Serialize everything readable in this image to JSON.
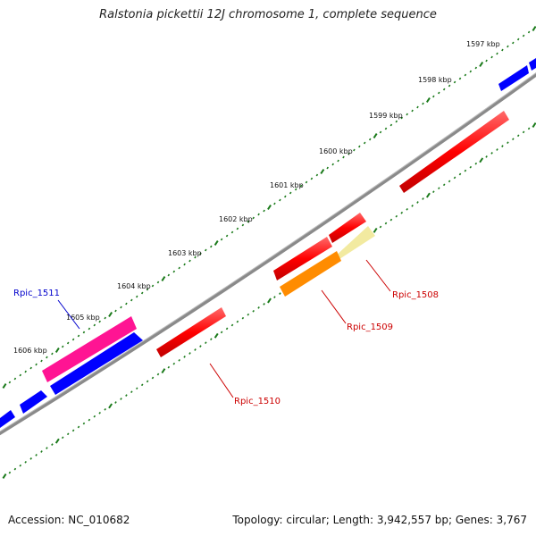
{
  "title": "Ralstonia pickettii 12J chromosome 1, complete sequence",
  "footer": {
    "accession": "Accession: NC_010682",
    "summary": "Topology: circular; Length: 3,942,557 bp; Genes: 3,767"
  },
  "colors": {
    "backbone": "#8a8a8a",
    "tick": "#1a7a1a",
    "forward": "#0000ff",
    "red": "#ff0000",
    "pink": "#ff1493",
    "orange": "#ff8c00",
    "pale": "#f2eaa0",
    "label_red": "#cc0000",
    "label_blue": "#0000cc"
  },
  "scale_labels": [
    "1597 kbp",
    "1598 kbp",
    "1599 kbp",
    "1600 kbp",
    "1601 kbp",
    "1602 kbp",
    "1603 kbp",
    "1604 kbp",
    "1605 kbp",
    "1606 kbp"
  ],
  "gene_labels": {
    "rpic_1508": "Rpic_1508",
    "rpic_1509": "Rpic_1509",
    "rpic_1510": "Rpic_1510",
    "rpic_1511": "Rpic_1511"
  }
}
